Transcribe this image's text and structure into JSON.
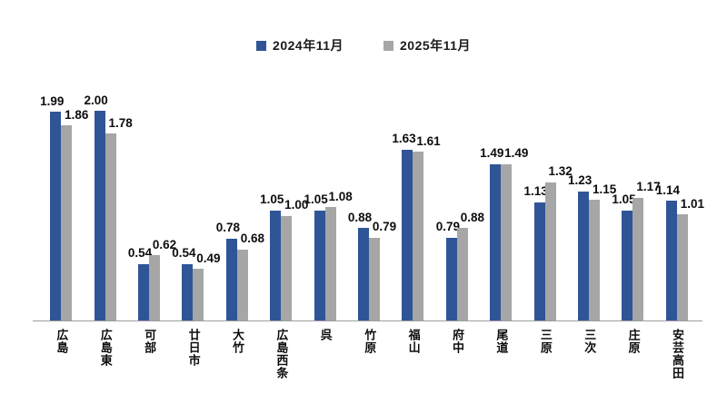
{
  "chart_data": {
    "type": "bar",
    "title": "",
    "xlabel": "",
    "ylabel": "",
    "ylim": [
      0,
      2.0
    ],
    "grid": false,
    "legend_position": "top",
    "value_labels": true,
    "value_label_format": "0.00",
    "categories": [
      "広島",
      "広島東",
      "可部",
      "廿日市",
      "大竹",
      "広島西条",
      "呉",
      "竹原",
      "福山",
      "府中",
      "尾道",
      "三原",
      "三次",
      "庄原",
      "安芸高田"
    ],
    "series": [
      {
        "name": "2024年11月",
        "color": "#2f5597",
        "values": [
          1.99,
          2.0,
          0.54,
          0.54,
          0.78,
          1.05,
          1.05,
          0.88,
          1.63,
          0.79,
          1.49,
          1.13,
          1.23,
          1.05,
          1.14
        ]
      },
      {
        "name": "2025年11月",
        "color": "#a6a6a6",
        "values": [
          1.86,
          1.78,
          0.62,
          0.49,
          0.68,
          1.0,
          1.08,
          0.79,
          1.61,
          0.88,
          1.49,
          1.32,
          1.15,
          1.17,
          1.01
        ]
      }
    ],
    "axis_line_color": "#9d9d9d",
    "text_color": "#0d0d0d",
    "background_color": "#ffffff"
  }
}
